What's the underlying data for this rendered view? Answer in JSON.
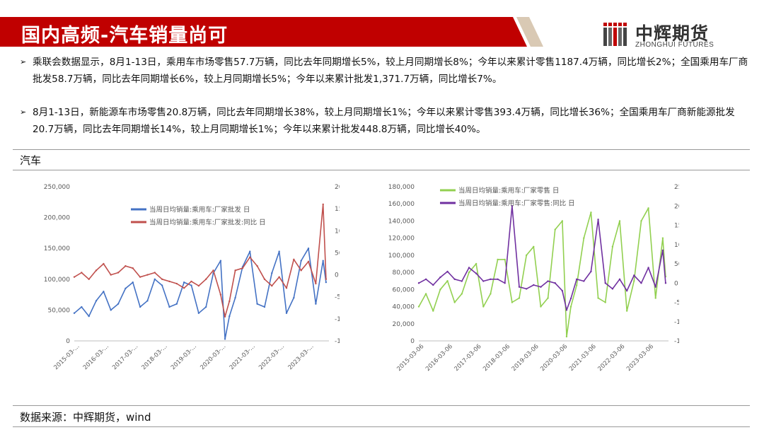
{
  "header": {
    "title": "国内高频-汽车销量尚可",
    "logo_name": "中辉期货",
    "logo_en": "ZHONGHUI FUTURES",
    "colors": {
      "title_bg": "#c00000",
      "accent_stripe": "#d9c9b4"
    }
  },
  "bullets": [
    "乘联会数据显示，8月1-13日，乘用车市场零售57.7万辆，同比去年同期增长5%，较上月同期增长8%；今年以来累计零售1187.4万辆，同比增长2%；全国乘用车厂商批发58.7万辆，同比去年同期增长6%，较上月同期增长5%；今年以来累计批发1,371.7万辆，同比增长7%。",
    "8月1-13日，新能源车市场零售20.8万辆，同比去年同期增长38%，较上月同期增长1%；今年以来累计零售393.4万辆，同比增长36%；全国乘用车厂商新能源批发20.7万辆，同比去年同期增长14%，较上月同期增长1%；今年以来累计批发448.8万辆，同比增长40%。"
  ],
  "section_label": "汽车",
  "source": "数据来源：中辉期货，wind",
  "chart_data": [
    {
      "type": "line",
      "x_tick_labels": [
        "2015-03-...",
        "2016-03-...",
        "2017-03-...",
        "2018-03-...",
        "2019-03-...",
        "2020-03-...",
        "2021-03-...",
        "2022-03-...",
        "2023-03-..."
      ],
      "x_range": [
        2015.0,
        2023.7
      ],
      "ylim_left": [
        0,
        250000
      ],
      "yticks_left": [
        "0",
        "50,000",
        "100,000",
        "150,000",
        "200,000",
        "250,000"
      ],
      "ylim_right": [
        -150,
        200
      ],
      "yticks_right": [
        "-150",
        "-100",
        "-50",
        "0",
        "50",
        "100",
        "150",
        "200"
      ],
      "legend_position": "top-left",
      "series": [
        {
          "name": "当周日均销量:乘用车:厂家批发 日",
          "axis": "left",
          "color": "#4472c4",
          "x": [
            2015.0,
            2015.25,
            2015.5,
            2015.75,
            2016.0,
            2016.25,
            2016.5,
            2016.75,
            2017.0,
            2017.25,
            2017.5,
            2017.75,
            2018.0,
            2018.25,
            2018.5,
            2018.75,
            2019.0,
            2019.25,
            2019.5,
            2019.75,
            2020.0,
            2020.15,
            2020.3,
            2020.5,
            2020.75,
            2021.0,
            2021.25,
            2021.5,
            2021.75,
            2022.0,
            2022.25,
            2022.5,
            2022.75,
            2023.0,
            2023.25,
            2023.5,
            2023.6
          ],
          "values": [
            45000,
            55000,
            40000,
            65000,
            80000,
            50000,
            60000,
            85000,
            95000,
            55000,
            65000,
            100000,
            90000,
            55000,
            60000,
            95000,
            90000,
            45000,
            55000,
            110000,
            130000,
            3000,
            40000,
            70000,
            120000,
            145000,
            60000,
            55000,
            110000,
            145000,
            45000,
            70000,
            130000,
            150000,
            60000,
            130000,
            95000
          ]
        },
        {
          "name": "当周日均销量:乘用车:厂家批发:同比 日",
          "axis": "right",
          "color": "#c0504d",
          "x": [
            2015.0,
            2015.25,
            2015.5,
            2015.75,
            2016.0,
            2016.25,
            2016.5,
            2016.75,
            2017.0,
            2017.25,
            2017.5,
            2017.75,
            2018.0,
            2018.25,
            2018.5,
            2018.75,
            2019.0,
            2019.25,
            2019.5,
            2019.75,
            2020.0,
            2020.15,
            2020.3,
            2020.5,
            2020.75,
            2021.0,
            2021.25,
            2021.5,
            2021.75,
            2022.0,
            2022.25,
            2022.5,
            2022.75,
            2023.0,
            2023.25,
            2023.5,
            2023.6
          ],
          "values": [
            -5,
            5,
            -10,
            10,
            25,
            0,
            5,
            20,
            15,
            -5,
            0,
            5,
            -10,
            -15,
            -20,
            -30,
            -15,
            -25,
            -10,
            10,
            -45,
            -95,
            -60,
            10,
            15,
            40,
            20,
            -10,
            -25,
            -5,
            -30,
            35,
            10,
            30,
            -20,
            160,
            -10
          ]
        }
      ]
    },
    {
      "type": "line",
      "x_tick_labels": [
        "2015-03-06",
        "2016-03-06",
        "2017-03-06",
        "2018-03-06",
        "2019-03-06",
        "2020-03-06",
        "2021-03-06",
        "2022-03-06",
        "2023-03-06"
      ],
      "x_range": [
        2015.0,
        2023.7
      ],
      "ylim_left": [
        0,
        180000
      ],
      "yticks_left": [
        "0",
        "20,000",
        "40,000",
        "60,000",
        "80,000",
        "100,000",
        "120,000",
        "140,000",
        "160,000",
        "180,000"
      ],
      "ylim_right": [
        -150,
        250
      ],
      "yticks_right": [
        "-150",
        "-100",
        "-50",
        "0",
        "50",
        "100",
        "150",
        "200",
        "250"
      ],
      "legend_position": "top-left",
      "series": [
        {
          "name": "当周日均销量:乘用车:厂家零售 日",
          "axis": "left",
          "color": "#92d050",
          "x": [
            2015.0,
            2015.25,
            2015.5,
            2015.75,
            2016.0,
            2016.25,
            2016.5,
            2016.75,
            2017.0,
            2017.25,
            2017.5,
            2017.75,
            2018.0,
            2018.25,
            2018.5,
            2018.75,
            2019.0,
            2019.25,
            2019.5,
            2019.75,
            2020.0,
            2020.15,
            2020.3,
            2020.5,
            2020.75,
            2021.0,
            2021.25,
            2021.5,
            2021.75,
            2022.0,
            2022.25,
            2022.5,
            2022.75,
            2023.0,
            2023.25,
            2023.5,
            2023.6
          ],
          "values": [
            40000,
            55000,
            35000,
            60000,
            70000,
            45000,
            55000,
            80000,
            90000,
            40000,
            55000,
            95000,
            95000,
            45000,
            50000,
            100000,
            110000,
            40000,
            50000,
            130000,
            140000,
            5000,
            40000,
            65000,
            120000,
            150000,
            50000,
            45000,
            110000,
            140000,
            35000,
            70000,
            140000,
            155000,
            50000,
            120000,
            75000
          ]
        },
        {
          "name": "当周日均销量:乘用车:厂家零售:同比 日",
          "axis": "right",
          "color": "#7030a0",
          "x": [
            2015.0,
            2015.25,
            2015.5,
            2015.75,
            2016.0,
            2016.25,
            2016.5,
            2016.75,
            2017.0,
            2017.25,
            2017.5,
            2017.75,
            2018.0,
            2018.25,
            2018.5,
            2018.75,
            2019.0,
            2019.25,
            2019.5,
            2019.75,
            2020.0,
            2020.15,
            2020.3,
            2020.5,
            2020.75,
            2021.0,
            2021.25,
            2021.5,
            2021.75,
            2022.0,
            2022.25,
            2022.5,
            2022.75,
            2023.0,
            2023.25,
            2023.5,
            2023.6
          ],
          "values": [
            0,
            10,
            -5,
            15,
            30,
            10,
            5,
            40,
            25,
            5,
            10,
            10,
            0,
            200,
            -10,
            -15,
            -5,
            -10,
            5,
            0,
            -20,
            -70,
            -40,
            10,
            5,
            30,
            165,
            0,
            -15,
            10,
            -20,
            20,
            0,
            40,
            -10,
            85,
            0
          ]
        }
      ]
    }
  ]
}
